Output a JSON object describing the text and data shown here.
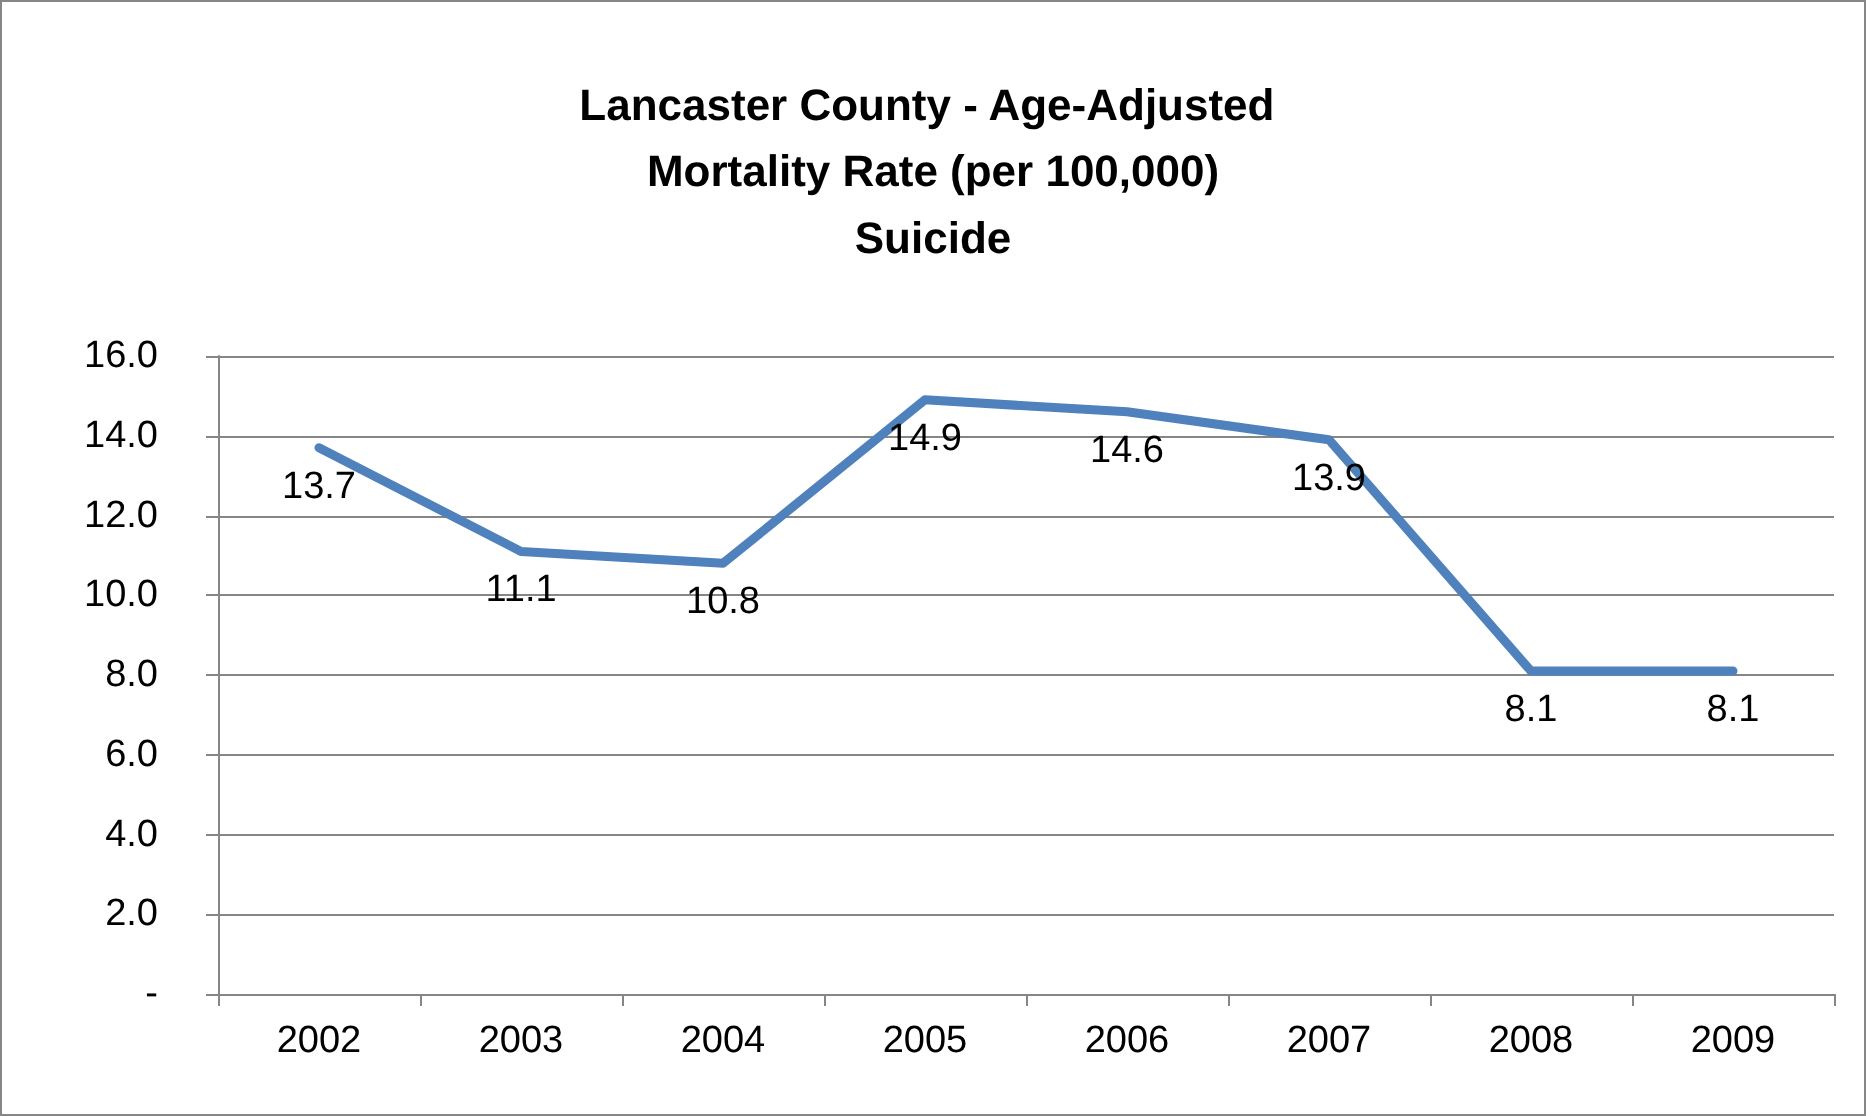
{
  "chart_data": {
    "type": "line",
    "title": "Lancaster County - Age-Adjusted Mortality Rate (per 100,000)",
    "subtitle": "Suicide",
    "categories": [
      "2002",
      "2003",
      "2004",
      "2005",
      "2006",
      "2007",
      "2008",
      "2009"
    ],
    "series": [
      {
        "color": "#4f81bd",
        "values": [
          13.7,
          11.1,
          10.8,
          14.9,
          14.6,
          13.9,
          8.1,
          8.1
        ]
      }
    ],
    "ylim": [
      0,
      16
    ],
    "yticks": [
      {
        "value": 0,
        "label": "-"
      },
      {
        "value": 2,
        "label": "2.0"
      },
      {
        "value": 4,
        "label": "4.0"
      },
      {
        "value": 6,
        "label": "6.0"
      },
      {
        "value": 8,
        "label": "8.0"
      },
      {
        "value": 10,
        "label": "10.0"
      },
      {
        "value": 12,
        "label": "12.0"
      },
      {
        "value": 14,
        "label": "14.0"
      },
      {
        "value": 16,
        "label": "16.0"
      }
    ],
    "grid": "y",
    "data_labels": true,
    "marker": "none",
    "line_style": "solid"
  }
}
